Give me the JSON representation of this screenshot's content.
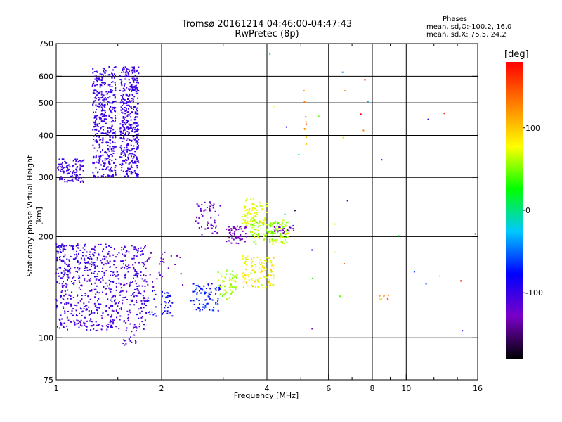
{
  "chart_data": {
    "type": "scatter",
    "title": "Tromsø 20161214 04:46:00-04:47:43",
    "subtitle": "RwPretec (8p)",
    "xlabel": "Frequency [MHz]",
    "ylabel": "Stationary phase Virtual Height [km]",
    "x_scale": "log",
    "y_scale": "log",
    "xlim": [
      1,
      16
    ],
    "ylim": [
      75,
      750
    ],
    "x_ticks": [
      1,
      2,
      4,
      6,
      8,
      10,
      16
    ],
    "x_tick_labels": [
      "1",
      "2",
      "4",
      "6",
      "8",
      "10",
      "16"
    ],
    "y_ticks": [
      75,
      100,
      200,
      300,
      400,
      500,
      600,
      750
    ],
    "y_tick_labels": [
      "75",
      "100",
      "200",
      "300",
      "400",
      "500",
      "600",
      "750"
    ],
    "x_minor_ticks": [
      1.5,
      3,
      5,
      7,
      9,
      12,
      14
    ],
    "grid": true,
    "colorbar": {
      "unit": "[deg]",
      "range": [
        -180,
        180
      ],
      "ticks": [
        100,
        0,
        -100
      ],
      "tick_labels": [
        "100",
        "0",
        "-100"
      ],
      "colors": [
        "#000000",
        "#7a00c8",
        "#0000ff",
        "#00c8ff",
        "#00ff00",
        "#ffff00",
        "#ff8000",
        "#ff0000"
      ]
    },
    "stats": {
      "heading": "Phases",
      "o_line": "mean, sd,O:-100.2, 16.0",
      "x_line": "mean, sd,X: 75.5, 24.2"
    },
    "clusters": [
      {
        "f": [
          1.0,
          1.2
        ],
        "h": [
          290,
          340
        ],
        "n": 120,
        "phase": [
          -110,
          -95
        ]
      },
      {
        "f": [
          1.27,
          1.48
        ],
        "h": [
          300,
          640
        ],
        "n": 420,
        "phase": [
          -110,
          -95
        ]
      },
      {
        "f": [
          1.52,
          1.72
        ],
        "h": [
          300,
          640
        ],
        "n": 420,
        "phase": [
          -110,
          -95
        ]
      },
      {
        "f": [
          1.0,
          1.82
        ],
        "h": [
          105,
          190
        ],
        "n": 650,
        "phase": [
          -120,
          -95
        ]
      },
      {
        "f": [
          1.55,
          1.75
        ],
        "h": [
          95,
          110
        ],
        "n": 18,
        "phase": [
          -115,
          -100
        ]
      },
      {
        "f": [
          1.82,
          2.15
        ],
        "h": [
          115,
          140
        ],
        "n": 45,
        "phase": [
          -90,
          -70
        ]
      },
      {
        "f": [
          1.8,
          2.3
        ],
        "h": [
          140,
          180
        ],
        "n": 30,
        "phase": [
          -140,
          -110
        ]
      },
      {
        "f": [
          2.4,
          2.95
        ],
        "h": [
          120,
          145
        ],
        "n": 80,
        "phase": [
          -90,
          -55
        ]
      },
      {
        "f": [
          2.5,
          2.95
        ],
        "h": [
          200,
          255
        ],
        "n": 55,
        "phase": [
          -135,
          -110
        ]
      },
      {
        "f": [
          2.9,
          3.3
        ],
        "h": [
          130,
          160
        ],
        "n": 60,
        "phase": [
          40,
          75
        ]
      },
      {
        "f": [
          3.05,
          3.5
        ],
        "h": [
          190,
          215
        ],
        "n": 55,
        "phase": [
          -140,
          -120
        ]
      },
      {
        "f": [
          3.4,
          4.2
        ],
        "h": [
          140,
          175
        ],
        "n": 110,
        "phase": [
          60,
          100
        ]
      },
      {
        "f": [
          3.4,
          4.0
        ],
        "h": [
          215,
          260
        ],
        "n": 80,
        "phase": [
          60,
          90
        ]
      },
      {
        "f": [
          3.6,
          4.6
        ],
        "h": [
          190,
          225
        ],
        "n": 140,
        "phase": [
          40,
          75
        ]
      },
      {
        "f": [
          4.2,
          4.8
        ],
        "h": [
          205,
          215
        ],
        "n": 20,
        "phase": [
          -140,
          -120
        ]
      },
      {
        "f": [
          1.0,
          1.3
        ],
        "h": [
          150,
          190
        ],
        "n": 60,
        "phase": [
          -100,
          -80
        ]
      },
      {
        "f": [
          5.1,
          5.2
        ],
        "h": [
          360,
          580
        ],
        "n": 10,
        "phase": [
          100,
          150
        ]
      },
      {
        "f": [
          8.4,
          8.9
        ],
        "h": [
          128,
          135
        ],
        "n": 8,
        "phase": [
          90,
          150
        ]
      },
      {
        "f": [
          4.0,
          16.0
        ],
        "h": [
          100,
          700
        ],
        "n": 35,
        "phase": [
          -180,
          180
        ]
      }
    ]
  }
}
